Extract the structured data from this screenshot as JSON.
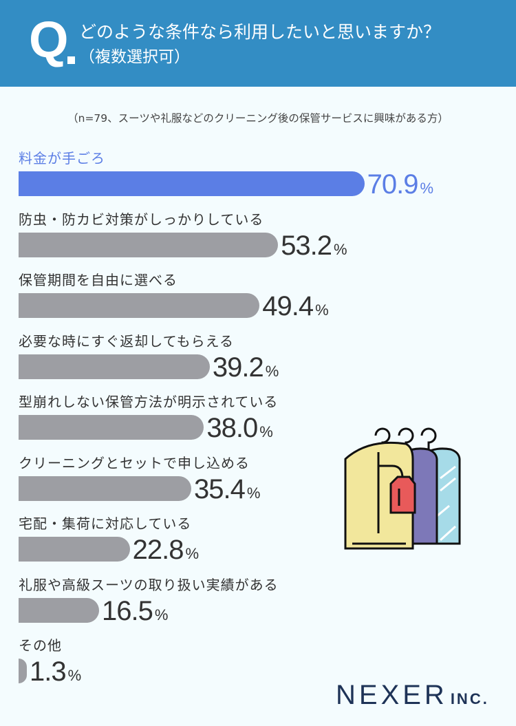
{
  "header": {
    "q": "Q",
    "title": "どのような条件なら利用したいと思いますか？",
    "subtitle": "（複数選択可）"
  },
  "note": "（n=79、スーツや礼服などのクリーニング後の保管サービスに興味がある方）",
  "logo": {
    "main": "NEXER",
    "suffix": "INC."
  },
  "colors": {
    "header": "#338dc4",
    "highlight": "#5b7ee5",
    "bar": "#9d9ea3",
    "text": "#333333"
  },
  "chart_data": {
    "type": "bar",
    "orientation": "horizontal",
    "categories": [
      "料金が手ごろ",
      "防虫・防カビ対策がしっかりしている",
      "保管期間を自由に選べる",
      "必要な時にすぐ返却してもらえる",
      "型崩れしない保管方法が明示されている",
      "クリーニングとセットで申し込める",
      "宅配・集荷に対応している",
      "礼服や高級スーツの取り扱い実績がある",
      "その他"
    ],
    "values": [
      70.9,
      53.2,
      49.4,
      39.2,
      38.0,
      35.4,
      22.8,
      16.5,
      1.3
    ],
    "labels": [
      "70.9",
      "53.2",
      "49.4",
      "39.2",
      "38.0",
      "35.4",
      "22.8",
      "16.5",
      "1.3"
    ],
    "unit": "%",
    "xlim": [
      0,
      100
    ],
    "grid": false
  }
}
